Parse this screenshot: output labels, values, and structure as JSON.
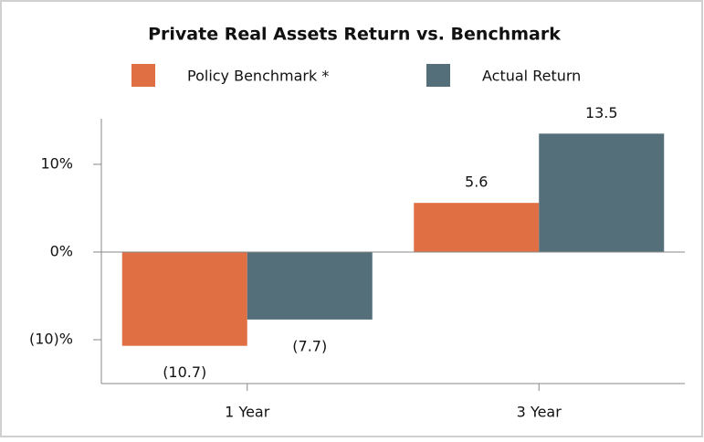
{
  "chart_data": {
    "type": "bar",
    "title": "Private Real Assets Return vs. Benchmark",
    "categories": [
      "1 Year",
      "3 Year"
    ],
    "series": [
      {
        "name": "Policy Benchmark *",
        "color": "#e07044",
        "values": [
          -10.7,
          5.6
        ],
        "value_labels": [
          "(10.7)",
          "5.6"
        ]
      },
      {
        "name": "Actual Return",
        "color": "#546e7a",
        "values": [
          -7.7,
          13.5
        ],
        "value_labels": [
          "(7.7)",
          "13.5"
        ]
      }
    ],
    "ylim": [
      -15,
      15.2
    ],
    "yticks": [
      {
        "value": -10,
        "label": "(10)%"
      },
      {
        "value": 0,
        "label": "0%"
      },
      {
        "value": 10,
        "label": "10%"
      }
    ]
  }
}
